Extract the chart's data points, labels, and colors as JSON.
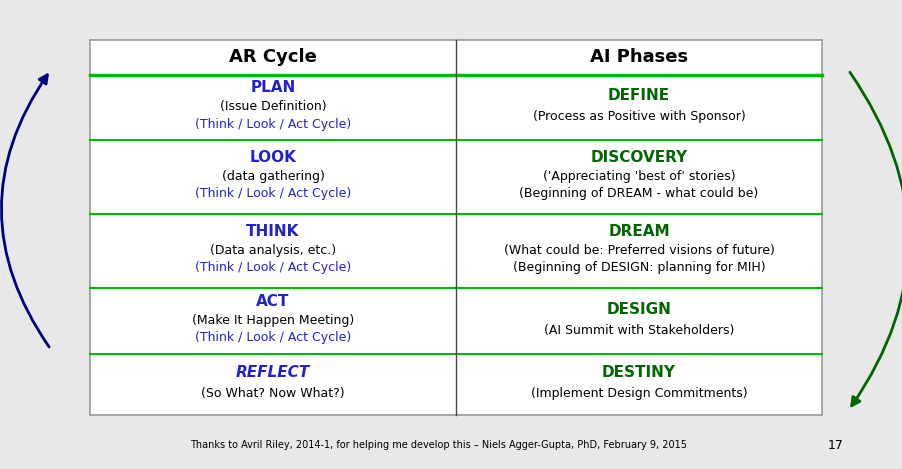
{
  "title_left": "AR Cycle",
  "title_right": "AI Phases",
  "background_color": "#e8e8e8",
  "table_bg": "#ffffff",
  "header_line_color": "#00bb00",
  "ar_rows": [
    {
      "main": "PLAN",
      "sub1": "(Issue Definition)",
      "sub2": "(Think / Look / Act Cycle)",
      "reflect": false
    },
    {
      "main": "LOOK",
      "sub1": "(data gathering)",
      "sub2": "(Think / Look / Act Cycle)",
      "reflect": false
    },
    {
      "main": "THINK",
      "sub1": "(Data analysis, etc.)",
      "sub2": "(Think / Look / Act Cycle)",
      "reflect": false
    },
    {
      "main": "ACT",
      "sub1": "(Make It Happen Meeting)",
      "sub2": "(Think / Look / Act Cycle)",
      "reflect": false
    },
    {
      "main": "REFLECT",
      "sub1": "(So What? Now What?)",
      "sub2": "",
      "reflect": true
    }
  ],
  "ai_rows": [
    {
      "main": "DEFINE",
      "sub1": "(Process as Positive with Sponsor)",
      "sub2": ""
    },
    {
      "main": "DISCOVERY",
      "sub1": "('Appreciating 'best of' stories)",
      "sub2": "(Beginning of DREAM - what could be)"
    },
    {
      "main": "DREAM",
      "sub1": "(What could be: Preferred visions of future)",
      "sub2": "(Beginning of DESIGN: planning for MIH)"
    },
    {
      "main": "DESIGN",
      "sub1": "(AI Summit with Stakeholders)",
      "sub2": ""
    },
    {
      "main": "DESTINY",
      "sub1": "(Implement Design Commitments)",
      "sub2": ""
    }
  ],
  "footer": "Thanks to Avril Riley, 2014-1, for helping me develop this – Niels Agger-Gupta, PhD, February 9, 2015",
  "page_num": "17",
  "ar_main_color": "#2222cc",
  "ar_sub2_color": "#2222cc",
  "ar_sub1_color": "#000000",
  "ai_main_color": "#006600",
  "ai_sub_color": "#000000"
}
